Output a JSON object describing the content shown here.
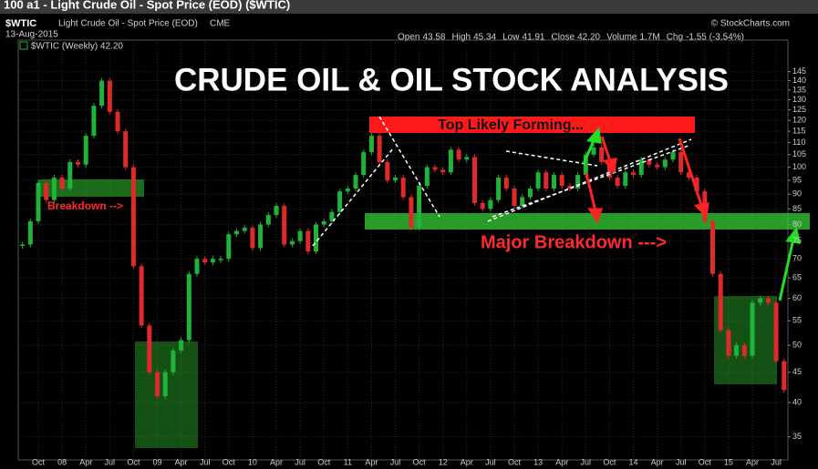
{
  "chart_data": {
    "type": "candlestick",
    "window_title": "100 a1 - Light Crude Oil - Spot Price (EOD) ($WTIC)",
    "credit": "© StockCharts.com",
    "symbol": "$WTIC",
    "subtitle": "Light Crude Oil - Spot Price (EOD)",
    "exchange": "CME",
    "date": "13-Aug-2015",
    "quote": [
      {
        "label": "Open",
        "value": "43.58"
      },
      {
        "label": "High",
        "value": "45.34"
      },
      {
        "label": "Low",
        "value": "41.91"
      },
      {
        "label": "Close",
        "value": "42.20"
      },
      {
        "label": "Volume",
        "value": "1.7M"
      },
      {
        "label": "Chg",
        "value": "-1.55 (-3.54%)"
      }
    ],
    "legend": "$WTIC (Weekly) 42.20",
    "annotations": {
      "title": "CRUDE OIL & OIL STOCK ANALYSIS",
      "top": "Top Likely Forming...",
      "breakdown": "Breakdown -->",
      "major": "Major Breakdown --->"
    },
    "categories": [
      null,
      null,
      "Oct",
      null,
      null,
      "08",
      null,
      null,
      "Apr",
      null,
      null,
      "Jul",
      null,
      null,
      "Oct",
      null,
      null,
      "09",
      null,
      null,
      "Apr",
      null,
      null,
      "Jul",
      null,
      null,
      "Oct",
      null,
      null,
      "10",
      null,
      null,
      "Apr",
      null,
      null,
      "Jul",
      null,
      null,
      "Oct",
      null,
      null,
      "11",
      null,
      null,
      "Apr",
      null,
      null,
      "Jul",
      null,
      null,
      "Oct",
      null,
      null,
      "12",
      null,
      null,
      "Apr",
      null,
      null,
      "Jul",
      null,
      null,
      "Oct",
      null,
      null,
      "13",
      null,
      null,
      "Apr",
      null,
      null,
      "Jul",
      null,
      null,
      "Oct",
      null,
      null,
      "14",
      null,
      null,
      "Apr",
      null,
      null,
      "Jul",
      null,
      null,
      "Oct",
      null,
      null,
      "15",
      null,
      null,
      "Apr",
      null,
      null,
      "Jul",
      null
    ],
    "values": [
      74,
      81,
      94,
      88,
      96,
      92,
      102,
      101,
      113,
      127,
      140,
      124,
      115,
      100,
      68,
      54,
      45,
      41,
      45,
      49,
      51,
      66,
      70,
      69,
      70,
      70,
      77,
      78,
      79,
      73,
      80,
      83,
      86,
      74,
      75,
      78,
      72,
      80,
      81,
      84,
      91,
      92,
      97,
      106,
      113,
      102,
      95,
      96,
      89,
      79,
      93,
      100,
      99,
      98,
      107,
      103,
      104,
      87,
      85,
      88,
      96,
      92,
      86,
      89,
      92,
      98,
      92,
      97,
      93,
      92,
      97,
      105,
      108,
      102,
      96,
      93,
      98,
      97,
      103,
      101,
      100,
      103,
      106,
      98,
      96,
      91,
      81,
      66,
      53,
      48,
      50,
      48,
      59,
      60,
      59,
      47,
      42
    ],
    "up_color": "#1fb33a",
    "down_color": "#e02a2a",
    "log_scale": true,
    "grid": true,
    "ylim": [
      32,
      164
    ],
    "yticks": [
      35,
      40,
      45,
      50,
      55,
      60,
      65,
      70,
      75,
      80,
      85,
      90,
      95,
      100,
      105,
      110,
      115,
      120,
      125,
      130,
      135,
      140,
      145
    ]
  }
}
